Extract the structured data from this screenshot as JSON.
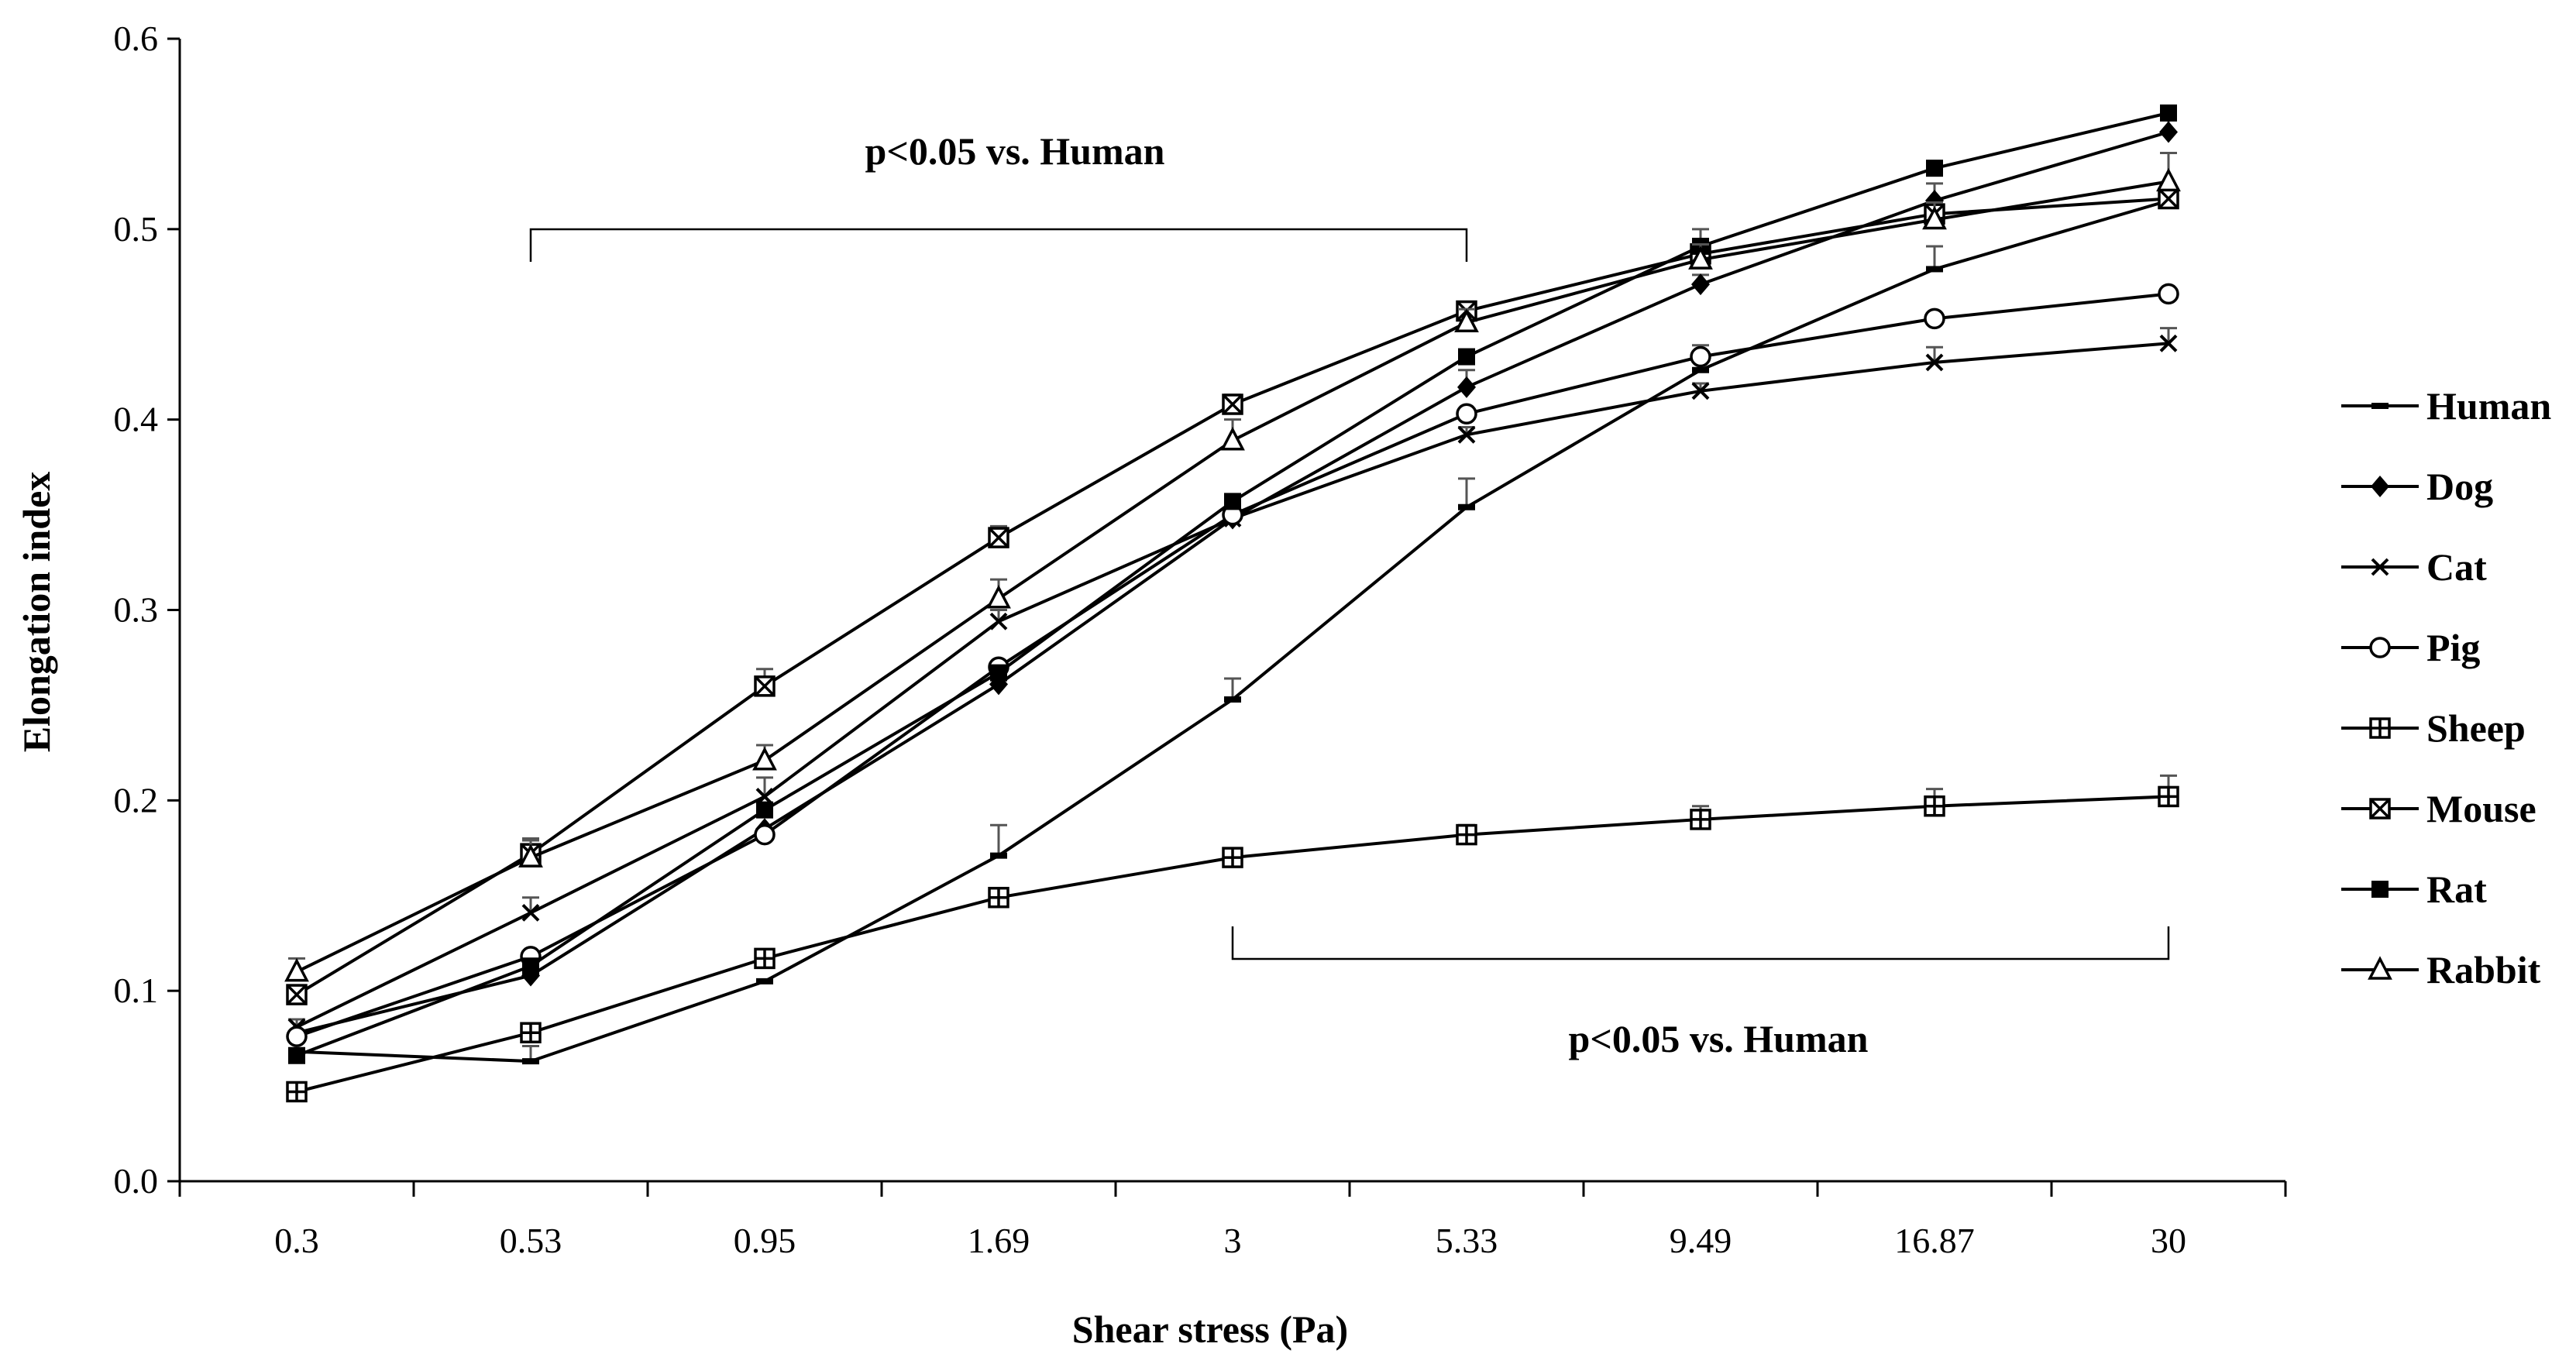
{
  "chart_data": {
    "type": "line",
    "title": "",
    "xlabel": "Shear stress (Pa)",
    "ylabel": "Elongation index",
    "categories": [
      "0.3",
      "0.53",
      "0.95",
      "1.69",
      "3",
      "5.33",
      "9.49",
      "16.87",
      "30"
    ],
    "ylim": [
      0,
      0.6
    ],
    "yticks": [
      "0.0",
      "0.1",
      "0.2",
      "0.3",
      "0.4",
      "0.5",
      "0.6"
    ],
    "grid": false,
    "legend_position": "right",
    "series": [
      {
        "name": "Human",
        "marker": "dash",
        "values": [
          0.068,
          0.063,
          0.105,
          0.171,
          0.253,
          0.354,
          0.426,
          0.479,
          0.515
        ],
        "errors": [
          0,
          0.008,
          0,
          0.016,
          0.011,
          0.015,
          0,
          0.012,
          0
        ]
      },
      {
        "name": "Dog",
        "marker": "diamond",
        "values": [
          0.078,
          0.108,
          0.185,
          0.261,
          0.348,
          0.417,
          0.471,
          0.515,
          0.551
        ],
        "errors": [
          0,
          0,
          0,
          0.005,
          0.004,
          0.009,
          0.005,
          0.009,
          0.009
        ]
      },
      {
        "name": "Cat",
        "marker": "x",
        "values": [
          0.081,
          0.141,
          0.202,
          0.294,
          0.348,
          0.392,
          0.415,
          0.43,
          0.44
        ],
        "errors": [
          0.004,
          0.008,
          0.01,
          0.006,
          0.004,
          0.004,
          0.004,
          0.008,
          0.008
        ]
      },
      {
        "name": "Pig",
        "marker": "circle",
        "values": [
          0.076,
          0.118,
          0.182,
          0.27,
          0.35,
          0.403,
          0.433,
          0.453,
          0.466
        ],
        "errors": [
          0,
          0,
          0,
          0,
          0,
          0,
          0.006,
          0,
          0
        ]
      },
      {
        "name": "Sheep",
        "marker": "square-plus",
        "values": [
          0.047,
          0.078,
          0.117,
          0.149,
          0.17,
          0.182,
          0.19,
          0.197,
          0.202
        ],
        "errors": [
          0,
          0,
          0,
          0,
          0,
          0.005,
          0.007,
          0.009,
          0.011
        ]
      },
      {
        "name": "Mouse",
        "marker": "x-square",
        "values": [
          0.098,
          0.172,
          0.26,
          0.338,
          0.408,
          0.457,
          0.487,
          0.508,
          0.516
        ],
        "errors": [
          0,
          0.007,
          0.009,
          0.006,
          0.005,
          0.003,
          0.006,
          0.005,
          0.005
        ]
      },
      {
        "name": "Rat",
        "marker": "square",
        "values": [
          0.066,
          0.113,
          0.195,
          0.267,
          0.357,
          0.433,
          0.491,
          0.532,
          0.561
        ],
        "errors": [
          0,
          0,
          0,
          0,
          0,
          0,
          0.009,
          0,
          0
        ]
      },
      {
        "name": "Rabbit",
        "marker": "triangle",
        "values": [
          0.11,
          0.17,
          0.221,
          0.306,
          0.389,
          0.451,
          0.484,
          0.505,
          0.525
        ],
        "errors": [
          0.007,
          0.01,
          0.008,
          0.01,
          0.011,
          0.007,
          0.008,
          0.009,
          0.015
        ]
      }
    ],
    "annotations": [
      {
        "text": "p<0.05 vs. Human",
        "bracket_from": "0.53",
        "bracket_to": "5.33",
        "placement": "above"
      },
      {
        "text": "p<0.05 vs. Human",
        "bracket_from": "3",
        "bracket_to": "30",
        "placement": "below"
      }
    ]
  }
}
